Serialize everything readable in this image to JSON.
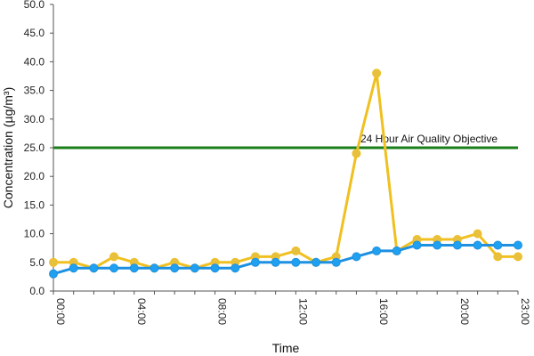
{
  "chart_data": {
    "type": "line",
    "title": "",
    "xlabel": "Time",
    "ylabel": "Concentration (µg/m³)",
    "ylim": [
      0,
      50
    ],
    "ytick_step": 5,
    "y_tick_labels": [
      "0.0",
      "5.0",
      "10.0",
      "15.0",
      "20.0",
      "25.0",
      "30.0",
      "35.0",
      "40.0",
      "45.0",
      "50.0"
    ],
    "x": [
      "00:00",
      "01:00",
      "02:00",
      "03:00",
      "04:00",
      "05:00",
      "06:00",
      "07:00",
      "08:00",
      "09:00",
      "10:00",
      "11:00",
      "12:00",
      "13:00",
      "14:00",
      "15:00",
      "16:00",
      "17:00",
      "18:00",
      "19:00",
      "20:00",
      "21:00",
      "22:00",
      "23:00"
    ],
    "x_tick_labels": [
      "00:00",
      "04:00",
      "08:00",
      "12:00",
      "16:00",
      "20:00",
      "23:00"
    ],
    "grid": false,
    "legend": "none",
    "series": [
      {
        "color": "#f0c020",
        "marker_fill": "#e8c040",
        "values": [
          5,
          5,
          4,
          6,
          5,
          4,
          5,
          4,
          5,
          5,
          6,
          6,
          7,
          5,
          6,
          24,
          38,
          7,
          9,
          9,
          9,
          10,
          6,
          6
        ]
      },
      {
        "color": "#1e90e0",
        "marker_fill": "#20a0f0",
        "values": [
          3,
          4,
          4,
          4,
          4,
          4,
          4,
          4,
          4,
          4,
          5,
          5,
          5,
          5,
          5,
          6,
          7,
          7,
          8,
          8,
          8,
          8,
          8,
          8
        ]
      }
    ],
    "reference_line": {
      "label": "24 Hour Air Quality Objective",
      "value": 25,
      "color": "#1a7f1a"
    }
  }
}
